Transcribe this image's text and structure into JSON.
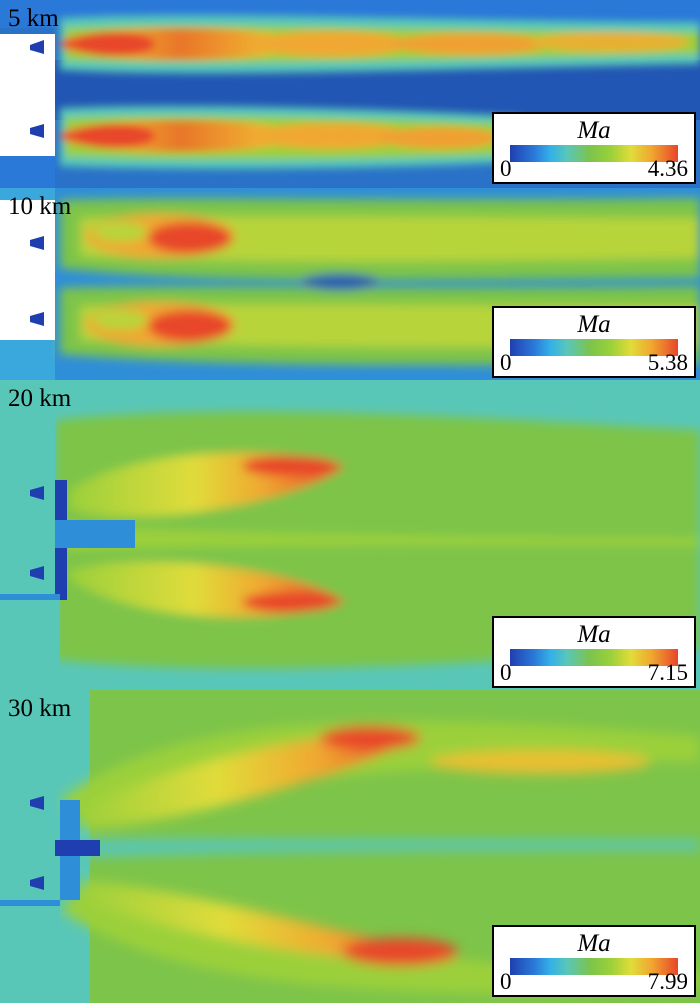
{
  "panels": [
    {
      "altitude": "5 km",
      "legend": {
        "variable": "Ma",
        "min": "0",
        "max": "4.36"
      }
    },
    {
      "altitude": "10 km",
      "legend": {
        "variable": "Ma",
        "min": "0",
        "max": "5.38"
      }
    },
    {
      "altitude": "20 km",
      "legend": {
        "variable": "Ma",
        "min": "0",
        "max": "7.15"
      }
    },
    {
      "altitude": "30 km",
      "legend": {
        "variable": "Ma",
        "min": "0",
        "max": "7.99"
      }
    }
  ],
  "colormap": [
    "#1f3fb0",
    "#2a78d8",
    "#33b0e8",
    "#59c7b8",
    "#7dc44a",
    "#9bd03a",
    "#e0dc3a",
    "#f0a830",
    "#e8462a"
  ]
}
